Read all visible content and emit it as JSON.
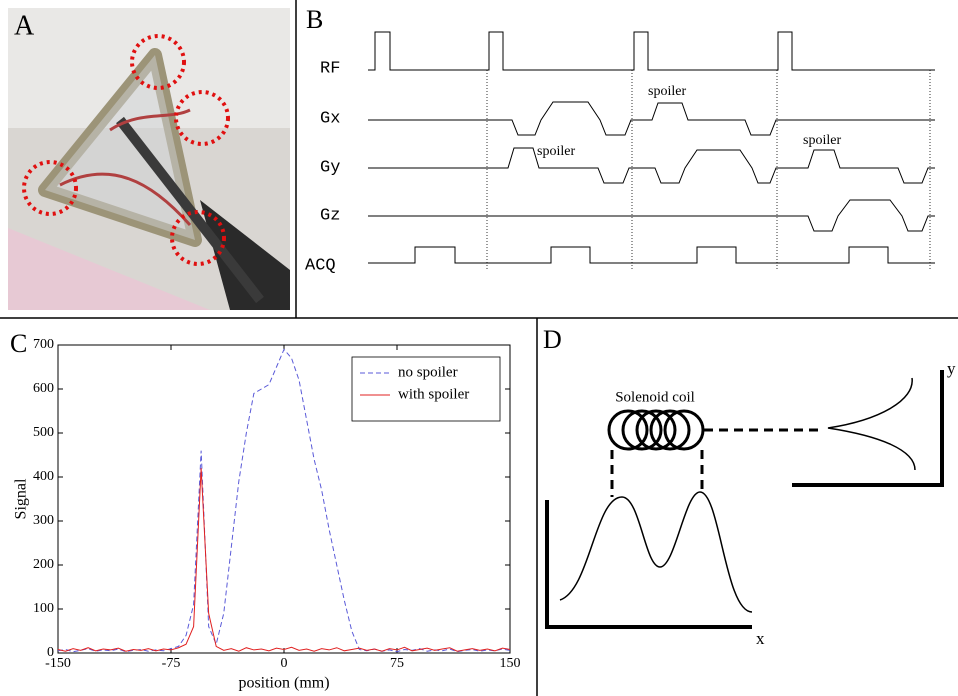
{
  "panels": {
    "a": {
      "label": "A"
    },
    "b": {
      "label": "B",
      "rows": [
        "RF",
        "Gx",
        "Gy",
        "Gz",
        "ACQ"
      ],
      "annotations": [
        "spoiler",
        "spoiler",
        "spoiler"
      ]
    },
    "d": {
      "label": "D",
      "coil": "Solenoid coil",
      "x_axis": "x",
      "y_axis": "y"
    }
  },
  "chart_data": {
    "type": "line",
    "panel_label": "C",
    "x_label": "position (mm)",
    "y_label": "Signal",
    "xlim": [
      -150,
      150
    ],
    "xticks": [
      -150,
      -75,
      0,
      75,
      150
    ],
    "ylim": [
      0,
      700
    ],
    "yticks": [
      0,
      100,
      200,
      300,
      400,
      500,
      600,
      700
    ],
    "legend": "upper right",
    "x": [
      -150,
      -145,
      -140,
      -135,
      -130,
      -125,
      -120,
      -115,
      -110,
      -105,
      -100,
      -95,
      -90,
      -85,
      -80,
      -75,
      -70,
      -65,
      -60,
      -55,
      -50,
      -45,
      -40,
      -35,
      -30,
      -25,
      -20,
      -15,
      -10,
      -5,
      0,
      5,
      10,
      15,
      20,
      25,
      30,
      35,
      40,
      45,
      50,
      55,
      60,
      65,
      70,
      75,
      80,
      85,
      90,
      95,
      100,
      105,
      110,
      115,
      120,
      125,
      130,
      135,
      140,
      145,
      150
    ],
    "series": [
      {
        "name": "no spoiler",
        "color": "#5a5ad8",
        "dashed": true,
        "values": [
          5,
          8,
          3,
          6,
          10,
          4,
          7,
          5,
          9,
          3,
          6,
          8,
          4,
          7,
          5,
          10,
          15,
          40,
          110,
          460,
          60,
          20,
          90,
          240,
          390,
          500,
          590,
          600,
          610,
          650,
          690,
          670,
          620,
          530,
          440,
          370,
          280,
          200,
          120,
          50,
          8,
          5,
          9,
          4,
          7,
          3,
          8,
          6,
          10,
          4,
          7,
          5,
          9,
          3,
          6,
          8,
          4,
          7,
          5,
          9,
          6
        ]
      },
      {
        "name": "with spoiler",
        "color": "#e02020",
        "dashed": false,
        "values": [
          8,
          4,
          10,
          6,
          12,
          5,
          9,
          7,
          11,
          4,
          8,
          6,
          10,
          5,
          9,
          7,
          12,
          20,
          60,
          420,
          90,
          15,
          6,
          10,
          4,
          12,
          7,
          9,
          5,
          11,
          8,
          13,
          6,
          9,
          4,
          10,
          7,
          12,
          5,
          8,
          11,
          6,
          9,
          4,
          10,
          7,
          13,
          5,
          8,
          11,
          6,
          9,
          12,
          4,
          7,
          10,
          6,
          9,
          5,
          11,
          8
        ]
      }
    ]
  }
}
